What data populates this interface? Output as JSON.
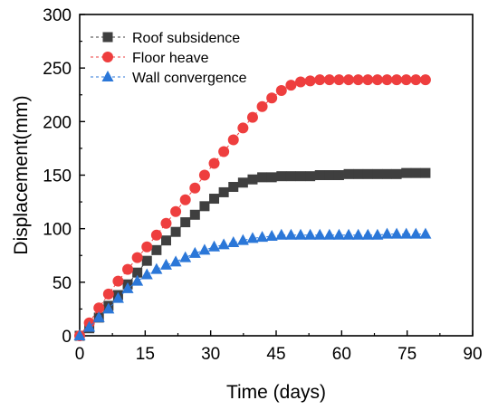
{
  "chart_data": {
    "type": "scatter",
    "title": "",
    "xlabel": "Time (days)",
    "ylabel": "Displacement(mm)",
    "xlim": [
      0,
      90
    ],
    "ylim": [
      0,
      300
    ],
    "xticks": [
      0,
      15,
      30,
      45,
      60,
      75,
      90
    ],
    "yticks": [
      0,
      50,
      100,
      150,
      200,
      250,
      300
    ],
    "grid": false,
    "legend_position": "top-left",
    "x": [
      0,
      2.2,
      4.4,
      6.6,
      8.8,
      11,
      13.2,
      15.4,
      17.6,
      19.8,
      22,
      24.2,
      26.4,
      28.6,
      30.8,
      33,
      35.2,
      37.4,
      39.6,
      41.8,
      44,
      46.2,
      48.4,
      50.6,
      52.8,
      55,
      57.2,
      59.4,
      61.6,
      63.8,
      66,
      68.2,
      70.4,
      72.6,
      74.8,
      77,
      79.2
    ],
    "series": [
      {
        "name": "Roof subsidence",
        "marker": "square",
        "color": "#3f3f3f",
        "values": [
          0,
          7,
          17,
          28,
          38,
          48,
          59,
          70,
          80,
          89,
          97,
          106,
          113,
          121,
          128,
          134,
          139,
          143,
          146,
          148,
          148,
          149,
          149,
          149,
          149,
          150,
          150,
          150,
          151,
          151,
          151,
          151,
          151,
          151,
          152,
          152,
          152
        ]
      },
      {
        "name": "Floor heave",
        "marker": "circle",
        "color": "#ee3e3e",
        "values": [
          0,
          12,
          26,
          39,
          51,
          62,
          73,
          83,
          94,
          105,
          116,
          127,
          138,
          150,
          161,
          172,
          183,
          194,
          204,
          214,
          222,
          229,
          234,
          237,
          238,
          239,
          239,
          239,
          239,
          239,
          239,
          239,
          239,
          239,
          239,
          239,
          239
        ]
      },
      {
        "name": "Wall convergence",
        "marker": "triangle",
        "color": "#2b77d8",
        "values": [
          0,
          8,
          17,
          25,
          35,
          44,
          51,
          57,
          62,
          66,
          69,
          73,
          77,
          80,
          83,
          85,
          87,
          89,
          91,
          92,
          93,
          94,
          94,
          94,
          94,
          94,
          94,
          94,
          94,
          94,
          94,
          94,
          95,
          95,
          95,
          95,
          95
        ]
      }
    ]
  }
}
